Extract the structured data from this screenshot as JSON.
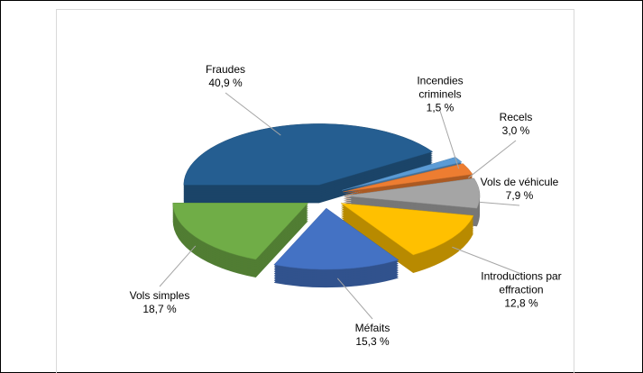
{
  "chart_data": {
    "type": "pie",
    "categories": [
      "Fraudes",
      "Incendies criminels",
      "Recels",
      "Vols de véhicule",
      "Introductions par effraction",
      "Méfaits",
      "Vols simples"
    ],
    "values": [
      40.9,
      1.5,
      3.0,
      7.9,
      12.8,
      15.3,
      18.7
    ],
    "value_labels": [
      "40,9 %",
      "1,5 %",
      "3,0 %",
      "7,9 %",
      "12,8 %",
      "15,3 %",
      "18,7 %"
    ],
    "colors": [
      "#255e91",
      "#5b9bd5",
      "#ed7d31",
      "#a5a5a5",
      "#ffc000",
      "#4472c4",
      "#70ad47"
    ]
  }
}
